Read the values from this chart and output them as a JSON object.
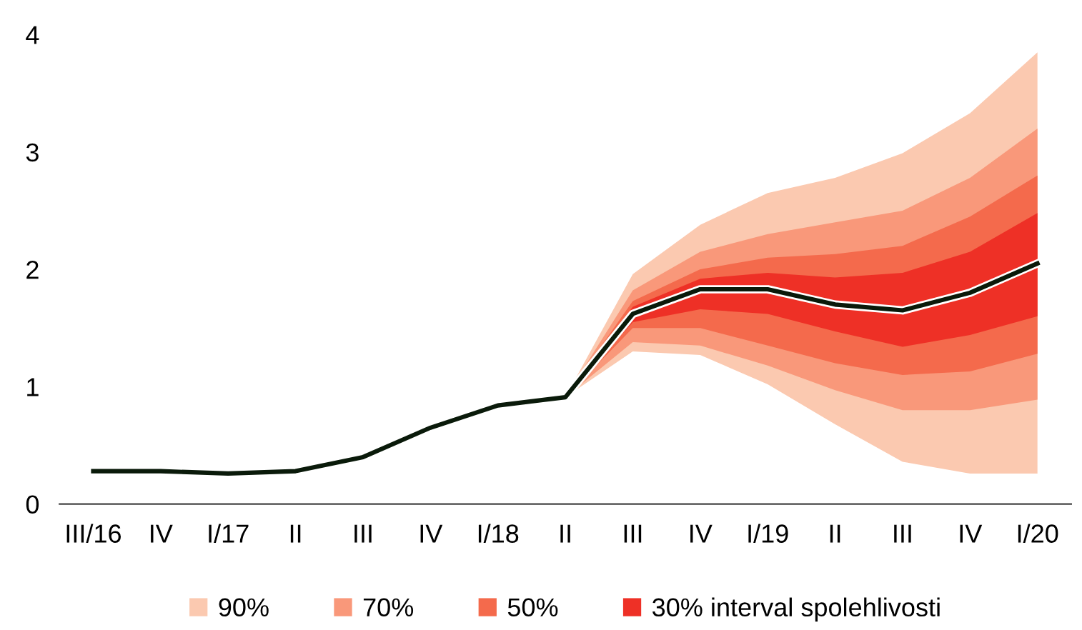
{
  "chart_data": {
    "type": "line",
    "categories": [
      "III/16",
      "IV",
      "I/17",
      "II",
      "III",
      "IV",
      "I/18",
      "II",
      "III",
      "IV",
      "I/19",
      "II",
      "III",
      "IV",
      "I/20"
    ],
    "ylim": [
      0,
      4
    ],
    "yticks": [
      0,
      1,
      2,
      3,
      4
    ],
    "grid": false,
    "legend": "bottom",
    "series": [
      {
        "type": "area",
        "name": "90%",
        "color": "#fbc9b0",
        "values": [
          null,
          null,
          null,
          null,
          null,
          null,
          null,
          null,
          null,
          null,
          null,
          null,
          null,
          null,
          null
        ],
        "lower": [
          null,
          null,
          null,
          null,
          null,
          null,
          null,
          0.91,
          1.3,
          1.27,
          1.02,
          0.68,
          0.36,
          0.26,
          0.26
        ],
        "upper": [
          null,
          null,
          null,
          null,
          null,
          null,
          null,
          0.91,
          1.96,
          2.38,
          2.65,
          2.78,
          2.99,
          3.33,
          3.85
        ]
      },
      {
        "type": "area",
        "name": "70%",
        "color": "#f9987a",
        "values": [
          null,
          null,
          null,
          null,
          null,
          null,
          null,
          null,
          null,
          null,
          null,
          null,
          null,
          null,
          null
        ],
        "lower": [
          null,
          null,
          null,
          null,
          null,
          null,
          null,
          0.91,
          1.38,
          1.35,
          1.18,
          0.97,
          0.8,
          0.8,
          0.89
        ],
        "upper": [
          null,
          null,
          null,
          null,
          null,
          null,
          null,
          0.91,
          1.82,
          2.15,
          2.3,
          2.4,
          2.5,
          2.78,
          3.2
        ]
      },
      {
        "type": "area",
        "name": "50%",
        "color": "#f46a4c",
        "values": [
          null,
          null,
          null,
          null,
          null,
          null,
          null,
          null,
          null,
          null,
          null,
          null,
          null,
          null,
          null
        ],
        "lower": [
          null,
          null,
          null,
          null,
          null,
          null,
          null,
          0.91,
          1.5,
          1.5,
          1.35,
          1.2,
          1.1,
          1.13,
          1.28
        ],
        "upper": [
          null,
          null,
          null,
          null,
          null,
          null,
          null,
          0.91,
          1.73,
          2.0,
          2.1,
          2.13,
          2.2,
          2.45,
          2.8
        ]
      },
      {
        "type": "area",
        "name": "30% interval spolehlivosti",
        "color": "#ee3026",
        "values": [
          null,
          null,
          null,
          null,
          null,
          null,
          null,
          null,
          null,
          null,
          null,
          null,
          null,
          null,
          null
        ],
        "lower": [
          null,
          null,
          null,
          null,
          null,
          null,
          null,
          0.91,
          1.55,
          1.66,
          1.62,
          1.47,
          1.34,
          1.44,
          1.6
        ],
        "upper": [
          null,
          null,
          null,
          null,
          null,
          null,
          null,
          0.91,
          1.68,
          1.92,
          1.97,
          1.93,
          1.97,
          2.15,
          2.48
        ]
      },
      {
        "type": "line",
        "color": "#0a1a0a",
        "values": [
          0.28,
          0.28,
          0.26,
          0.28,
          0.4,
          0.65,
          0.84,
          0.91,
          1.62,
          1.83,
          1.83,
          1.7,
          1.65,
          1.8,
          2.05
        ]
      }
    ]
  }
}
